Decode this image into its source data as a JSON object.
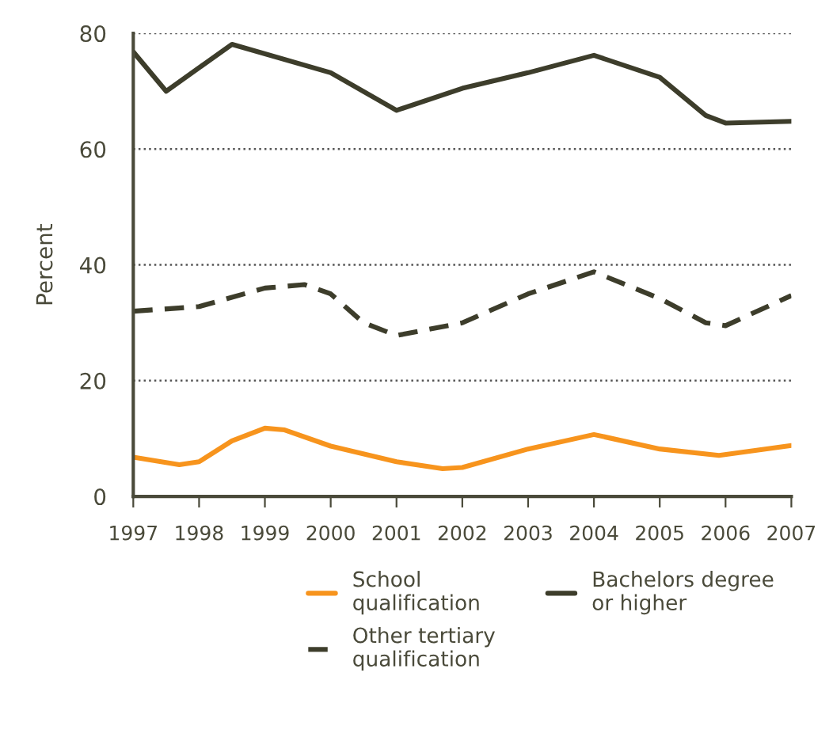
{
  "chart_data": {
    "type": "line",
    "ylabel": "Percent",
    "xlim": [
      1997,
      2007
    ],
    "ylim": [
      0,
      80
    ],
    "xticks": [
      1997,
      1998,
      1999,
      2000,
      2001,
      2002,
      2003,
      2004,
      2005,
      2006,
      2007
    ],
    "yticks": [
      0,
      20,
      40,
      60,
      80
    ],
    "grid": "y",
    "legend": "bottom",
    "series": [
      {
        "name": "School qualification",
        "color": "#f7941d",
        "line_style": "solid",
        "x": [
          1997,
          1997.7,
          1998,
          1998.5,
          1999,
          1999.3,
          2000,
          2001,
          2001.7,
          2002,
          2003,
          2004,
          2005,
          2005.9,
          2007
        ],
        "values": [
          6.8,
          5.5,
          6,
          9.6,
          11.8,
          11.5,
          8.7,
          6,
          4.8,
          5,
          8.2,
          10.7,
          8.2,
          7.1,
          8.8
        ]
      },
      {
        "name": "Other tertiary qualification",
        "color": "#3d3d2b",
        "line_style": "dashed",
        "x": [
          1997,
          1998,
          1999,
          1999.6,
          2000,
          2000.5,
          2001,
          2002,
          2003,
          2004,
          2005,
          2005.7,
          2006,
          2007
        ],
        "values": [
          32,
          32.8,
          36,
          36.6,
          35,
          30,
          27.8,
          30,
          35,
          38.8,
          34.2,
          30,
          29.5,
          34.7
        ]
      },
      {
        "name": "Bachelors degree or higher",
        "color": "#3d3d2b",
        "line_style": "solid",
        "x": [
          1997,
          1997.5,
          1998.5,
          2000,
          2001,
          2002,
          2003,
          2004,
          2005,
          2005.7,
          2006,
          2007
        ],
        "values": [
          76.8,
          70,
          78.1,
          73.2,
          66.7,
          70.5,
          73.2,
          76.2,
          72.4,
          65.8,
          64.5,
          64.8
        ]
      }
    ]
  }
}
